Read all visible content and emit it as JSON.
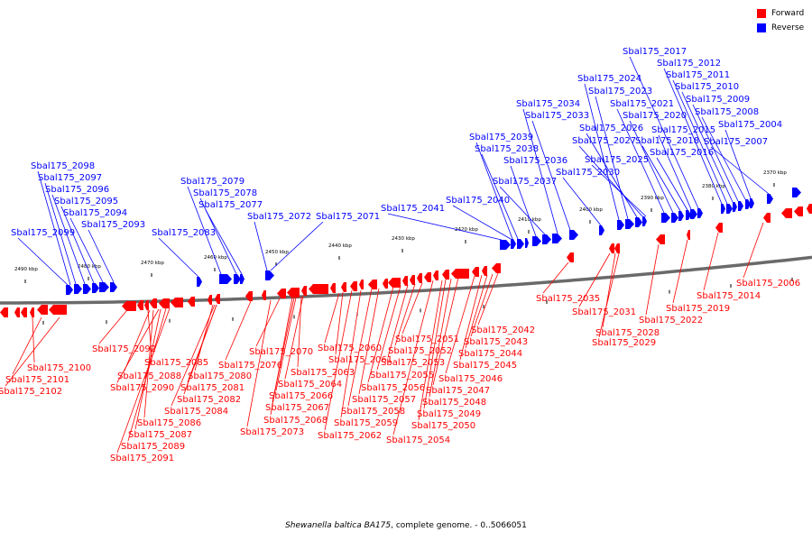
{
  "legend": {
    "forward": {
      "label": "Forward",
      "color": "#ff0000"
    },
    "reverse": {
      "label": "Reverse",
      "color": "#0000ff"
    }
  },
  "caption": {
    "organism": "Shewanella baltica BA175",
    "rest": ", complete genome. - 0..5066051"
  },
  "ticks": [
    "2490 kbp",
    "2480 kbp",
    "2470 kbp",
    "2460 kbp",
    "2450 kbp",
    "2440 kbp",
    "2430 kbp",
    "2420 kbp",
    "2410 kbp",
    "2400 kbp",
    "2390 kbp",
    "2380 kbp",
    "2370 kbp"
  ],
  "reverse_labels": [
    "Sbal175_2098",
    "Sbal175_2097",
    "Sbal175_2096",
    "Sbal175_2095",
    "Sbal175_2094",
    "Sbal175_2093",
    "Sbal175_2099",
    "Sbal175_2083",
    "Sbal175_2079",
    "Sbal175_2078",
    "Sbal175_2077",
    "Sbal175_2072",
    "Sbal175_2071",
    "Sbal175_2041",
    "Sbal175_2040",
    "Sbal175_2039",
    "Sbal175_2038",
    "Sbal175_2036",
    "Sbal175_2037",
    "Sbal175_2034",
    "Sbal175_2033",
    "Sbal175_2030",
    "Sbal175_2024",
    "Sbal175_2023",
    "Sbal175_2026",
    "Sbal175_2027",
    "Sbal175_2025",
    "Sbal175_2021",
    "Sbal175_2020",
    "Sbal175_2018",
    "Sbal175_2016",
    "Sbal175_2015",
    "Sbal175_2017",
    "Sbal175_2012",
    "Sbal175_2011",
    "Sbal175_2010",
    "Sbal175_2009",
    "Sbal175_2008",
    "Sbal175_2004",
    "Sbal175_2007"
  ],
  "forward_labels": [
    "Sbal175_2100",
    "Sbal175_2101",
    "Sbal175_2102",
    "Sbal175_2092",
    "Sbal175_2085",
    "Sbal175_2088",
    "Sbal175_2090",
    "Sbal175_2080",
    "Sbal175_2081",
    "Sbal175_2082",
    "Sbal175_2084",
    "Sbal175_2086",
    "Sbal175_2087",
    "Sbal175_2089",
    "Sbal175_2091",
    "Sbal175_2076",
    "Sbal175_2070",
    "Sbal175_2060",
    "Sbal175_2061",
    "Sbal175_2063",
    "Sbal175_2064",
    "Sbal175_2066",
    "Sbal175_2067",
    "Sbal175_2068",
    "Sbal175_2073",
    "Sbal175_2051",
    "Sbal175_2052",
    "Sbal175_2053",
    "Sbal175_2055",
    "Sbal175_2056",
    "Sbal175_2057",
    "Sbal175_2058",
    "Sbal175_2059",
    "Sbal175_2062",
    "Sbal175_2054",
    "Sbal175_2042",
    "Sbal175_2043",
    "Sbal175_2044",
    "Sbal175_2045",
    "Sbal175_2046",
    "Sbal175_2047",
    "Sbal175_2048",
    "Sbal175_2049",
    "Sbal175_2050",
    "Sbal175_2035",
    "Sbal175_2031",
    "Sbal175_2028",
    "Sbal175_2029",
    "Sbal175_2022",
    "Sbal175_2019",
    "Sbal175_2014",
    "Sbal175_2006"
  ]
}
